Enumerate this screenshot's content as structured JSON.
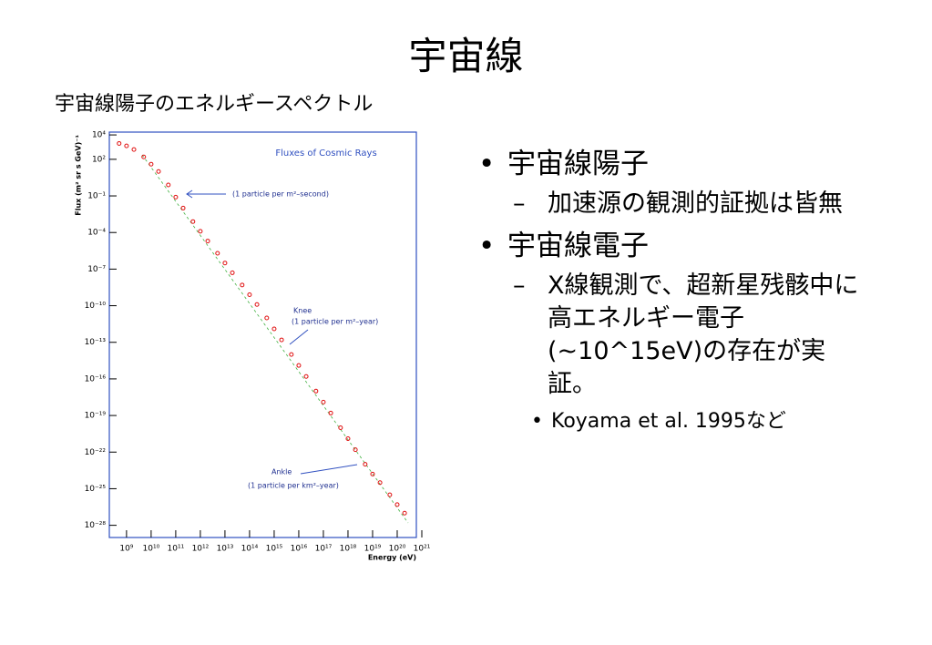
{
  "title": "宇宙線",
  "subtitle": "宇宙線陽子のエネルギースペクトル",
  "bullets": [
    {
      "text": "宇宙線陽子",
      "sub": [
        {
          "text": "加速源の観測的証拠は皆無",
          "sub": []
        }
      ]
    },
    {
      "text": "宇宙線電子",
      "sub": [
        {
          "text": "X線観測で、超新星残骸中に高エネルギー電子(~10^15eV)の存在が実証。",
          "sub": [
            "Koyama et al. 1995など"
          ]
        }
      ]
    }
  ],
  "chart_data": {
    "type": "scatter",
    "title": "Fluxes of Cosmic Rays",
    "x_label": "Energy (eV)",
    "y_label": "Flux (m² sr s GeV)⁻¹",
    "log_x": true,
    "log_y": true,
    "frame_color": "#3050c0",
    "xlim": [
      200000000.0,
      6e+20
    ],
    "ylim": [
      1e-29,
      17000.0
    ],
    "xticks": [
      {
        "value": 1000000000.0,
        "label": "10⁹"
      },
      {
        "value": 10000000000.0,
        "label": "10¹⁰"
      },
      {
        "value": 100000000000.0,
        "label": "10¹¹"
      },
      {
        "value": 1000000000000.0,
        "label": "10¹²"
      },
      {
        "value": 10000000000000.0,
        "label": "10¹³"
      },
      {
        "value": 100000000000000.0,
        "label": "10¹⁴"
      },
      {
        "value": 1000000000000000.0,
        "label": "10¹⁵"
      },
      {
        "value": 1e+16,
        "label": "10¹⁶"
      },
      {
        "value": 1e+17,
        "label": "10¹⁷"
      },
      {
        "value": 1e+18,
        "label": "10¹⁸"
      },
      {
        "value": 1e+19,
        "label": "10¹⁹"
      },
      {
        "value": 1e+20,
        "label": "10²⁰"
      },
      {
        "value": 1e+21,
        "label": "10²¹"
      }
    ],
    "yticks": [
      {
        "value": 10000.0,
        "label": "10⁴"
      },
      {
        "value": 100.0,
        "label": "10²"
      },
      {
        "value": 0.1,
        "label": "10⁻¹"
      },
      {
        "value": 0.0001,
        "label": "10⁻⁴"
      },
      {
        "value": 1e-07,
        "label": "10⁻⁷"
      },
      {
        "value": 1e-10,
        "label": "10⁻¹⁰"
      },
      {
        "value": 1e-13,
        "label": "10⁻¹³"
      },
      {
        "value": 1e-16,
        "label": "10⁻¹⁶"
      },
      {
        "value": 1e-19,
        "label": "10⁻¹⁹"
      },
      {
        "value": 1e-22,
        "label": "10⁻²²"
      },
      {
        "value": 1e-25,
        "label": "10⁻²⁵"
      },
      {
        "value": 1e-28,
        "label": "10⁻²⁸"
      }
    ],
    "annotations": [
      "(1 particle per m²–second)",
      "Knee",
      "(1 particle per m²–year)",
      "Ankle",
      "(1 particle per km²–year)"
    ],
    "series": [
      {
        "color": "#e01010",
        "x": [
          500000000.0,
          1000000000.0,
          2000000000.0,
          5000000000.0,
          10000000000.0,
          20000000000.0,
          50000000000.0,
          100000000000.0,
          200000000000.0,
          500000000000.0,
          1000000000000.0,
          2000000000000.0,
          5000000000000.0,
          10000000000000.0,
          20000000000000.0,
          50000000000000.0,
          100000000000000.0,
          200000000000000.0,
          500000000000000.0,
          1000000000000000.0,
          2000000000000000.0,
          5000000000000000.0,
          1e+16,
          2e+16,
          5e+16,
          1e+17,
          2e+17,
          5e+17,
          1e+18,
          2e+18,
          5e+18,
          1e+19,
          2e+19,
          5e+19,
          1e+20,
          2e+20
        ],
        "values": [
          2000.0,
          1260.0,
          630.0,
          158.0,
          40,
          10,
          0.79,
          0.079,
          0.01,
          0.00079,
          0.000126,
          2e-05,
          2e-06,
          3.16e-07,
          5e-08,
          5e-09,
          7.9e-10,
          1.26e-10,
          1e-11,
          1.26e-12,
          1.58e-13,
          1e-14,
          1.26e-15,
          1.58e-16,
          1e-17,
          1.26e-18,
          1.58e-19,
          1e-20,
          1.26e-21,
          1.58e-22,
          1e-23,
          1.58e-24,
          3.16e-25,
          3.16e-26,
          5e-27,
          1e-27
        ]
      }
    ]
  }
}
